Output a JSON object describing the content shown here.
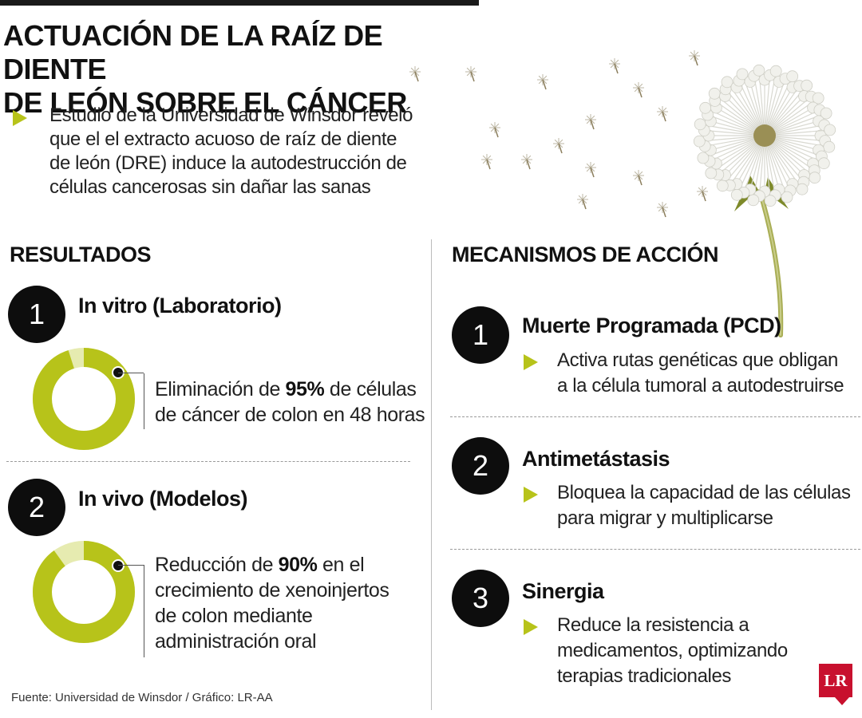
{
  "header": {
    "title_line1": "ACTUACIÓN DE LA RAÍZ DE DIENTE",
    "title_line2": "DE LEÓN SOBRE EL CÁNCER"
  },
  "intro": {
    "lines": [
      "Estudio de la Universidad de Winsdor reveló",
      "que el el extracto acuoso de raíz de diente",
      "de león (DRE) induce la autodestrucción de",
      "células cancerosas sin dañar las sanas"
    ]
  },
  "results": {
    "heading": "RESULTADOS",
    "items": [
      {
        "number": "1",
        "title": "In vitro (Laboratorio)",
        "percent": 95,
        "line1_pre": "Eliminación de ",
        "line1_value": "95%",
        "line1_post": " de células",
        "line2": "de cáncer de colon en 48 horas",
        "line3": "",
        "line4": ""
      },
      {
        "number": "2",
        "title": "In vivo (Modelos)",
        "percent": 90,
        "line1_pre": "Reducción de ",
        "line1_value": "90%",
        "line1_post": " en el",
        "line2": "crecimiento de xenoinjertos",
        "line3": "de colon mediante",
        "line4": "administración oral"
      }
    ]
  },
  "mechanisms": {
    "heading": "MECANISMOS DE ACCIÓN",
    "items": [
      {
        "number": "1",
        "title": "Muerte Programada (PCD)",
        "line1": "Activa rutas genéticas que obligan",
        "line2": "a la célula tumoral a autodestruirse",
        "line3": ""
      },
      {
        "number": "2",
        "title": "Antimetástasis",
        "line1": "Bloquea la capacidad de las células",
        "line2": "para migrar y multiplicarse",
        "line3": ""
      },
      {
        "number": "3",
        "title": "Sinergia",
        "line1": "Reduce la resistencia a",
        "line2": "medicamentos, optimizando",
        "line3": "terapias tradicionales"
      }
    ]
  },
  "footer": {
    "source": "Fuente: Universidad de Winsdor / Gráfico: LR-AA",
    "logo": "LR"
  },
  "colors": {
    "accent": "#b7c31a",
    "accent_light": "#e6ebb0",
    "circle": "#0d0d0d",
    "logo_red": "#c8102e"
  },
  "icons": [
    "triangle-bullet-icon",
    "dandelion-illustration",
    "lr-logo"
  ]
}
